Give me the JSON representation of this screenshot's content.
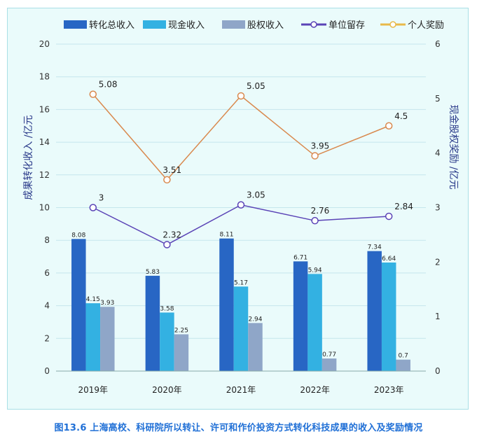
{
  "caption": "图13.6    上海高校、科研院所以转让、许可和作价投资方式转化科技成果的收入及奖励情况",
  "chart_data": {
    "type": "bar",
    "categories": [
      "2019年",
      "2020年",
      "2021年",
      "2022年",
      "2023年"
    ],
    "y_left": {
      "label": "成果转化收入 /亿元",
      "min": 0,
      "max": 20,
      "step": 2
    },
    "y_right": {
      "label": "现金股权奖励 /亿元",
      "min": 0,
      "max": 6,
      "step": 1
    },
    "grid": true,
    "legend_position": "top",
    "bar_series": [
      {
        "name": "转化总收入",
        "color": "#2866c4",
        "values": [
          8.08,
          5.83,
          8.11,
          6.71,
          7.34
        ],
        "axis": "left"
      },
      {
        "name": "现金收入",
        "color": "#33b1e2",
        "values": [
          4.15,
          3.58,
          5.17,
          5.94,
          6.64
        ],
        "axis": "left"
      },
      {
        "name": "股权收入",
        "color": "#8fa6c8",
        "values": [
          3.93,
          2.25,
          2.94,
          0.77,
          0.7
        ],
        "axis": "left"
      }
    ],
    "line_series": [
      {
        "name": "单位留存",
        "color": "#5a43b6",
        "values": [
          3,
          2.32,
          3.05,
          2.76,
          2.84
        ],
        "axis": "right"
      },
      {
        "name": "个人奖励",
        "color": "#d9894e",
        "legend_color": "#e8b94a",
        "values": [
          5.08,
          3.51,
          5.05,
          3.95,
          4.5
        ],
        "axis": "right"
      }
    ]
  }
}
